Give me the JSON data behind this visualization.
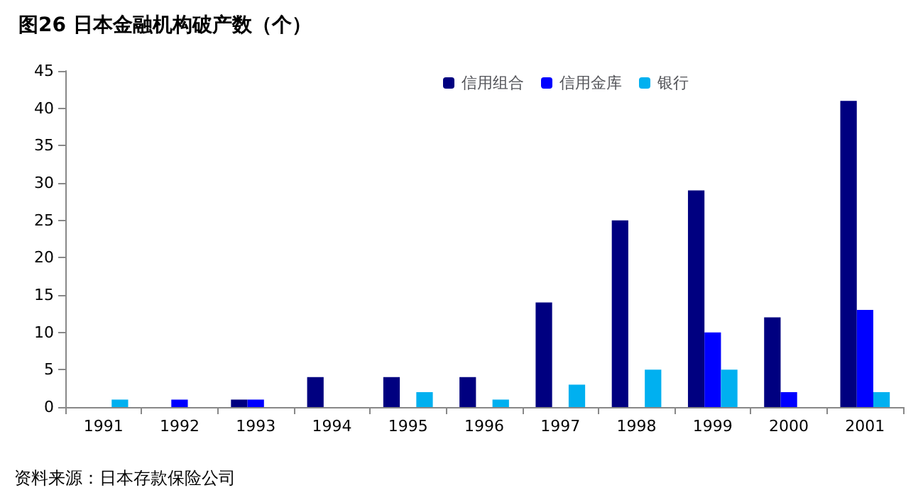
{
  "chart_data": {
    "type": "bar",
    "title": "图26 日本金融机构破产数（个）",
    "categories": [
      "1991",
      "1992",
      "1993",
      "1994",
      "1995",
      "1996",
      "1997",
      "1998",
      "1999",
      "2000",
      "2001"
    ],
    "series": [
      {
        "name": "信用组合",
        "color": "#000080",
        "values": [
          0,
          0,
          1,
          4,
          4,
          4,
          14,
          25,
          29,
          12,
          41
        ]
      },
      {
        "name": "信用金库",
        "color": "#0000ff",
        "values": [
          0,
          1,
          1,
          0,
          0,
          0,
          0,
          0,
          10,
          2,
          13
        ]
      },
      {
        "name": "银行",
        "color": "#00b0f0",
        "values": [
          1,
          0,
          0,
          0,
          2,
          1,
          3,
          5,
          5,
          0,
          2
        ]
      }
    ],
    "ylim": [
      0,
      45
    ],
    "yticks": [
      0,
      5,
      10,
      15,
      20,
      25,
      30,
      35,
      40,
      45
    ],
    "grid": false,
    "legend": "top right",
    "annotations": [
      "资料来源：日本存款保险公司"
    ]
  }
}
